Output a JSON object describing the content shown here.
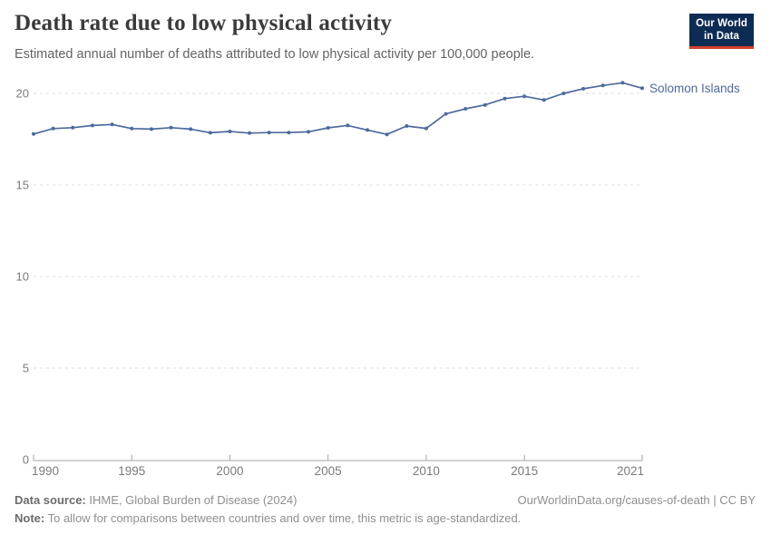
{
  "header": {
    "title": "Death rate due to low physical activity",
    "subtitle": "Estimated annual number of deaths attributed to low physical activity per 100,000 people.",
    "logo": {
      "line1": "Our World",
      "line2": "in Data"
    }
  },
  "chart_data": {
    "type": "line",
    "title": "Death rate due to low physical activity",
    "x": [
      1990,
      1991,
      1992,
      1993,
      1994,
      1995,
      1996,
      1997,
      1998,
      1999,
      2000,
      2001,
      2002,
      2003,
      2004,
      2005,
      2006,
      2007,
      2008,
      2009,
      2010,
      2011,
      2012,
      2013,
      2014,
      2015,
      2016,
      2017,
      2018,
      2019,
      2020,
      2021
    ],
    "series": [
      {
        "name": "Solomon Islands",
        "values": [
          17.78,
          18.08,
          18.13,
          18.25,
          18.3,
          18.08,
          18.05,
          18.13,
          18.05,
          17.85,
          17.92,
          17.83,
          17.86,
          17.86,
          17.9,
          18.12,
          18.25,
          18.0,
          17.76,
          18.22,
          18.09,
          18.88,
          19.16,
          19.37,
          19.72,
          19.84,
          19.64,
          20.0,
          20.25,
          20.43,
          20.58,
          20.28
        ]
      }
    ],
    "xlabel": "",
    "ylabel": "",
    "xlim": [
      1990,
      2021
    ],
    "ylim": [
      0,
      20
    ],
    "x_ticks": [
      1990,
      1995,
      2000,
      2005,
      2010,
      2015,
      2021
    ],
    "y_ticks": [
      0,
      5,
      10,
      15,
      20
    ],
    "grid": "dashed-horizontal",
    "legend_position": "line-end-label"
  },
  "footer": {
    "source_label": "Data source:",
    "source_text": " IHME, Global Burden of Disease (2024)",
    "link": "OurWorldinData.org/causes-of-death | CC BY",
    "note_label": "Note:",
    "note_text": " To allow for comparisons between countries and over time, this metric is age-standardized."
  },
  "colors": {
    "line": "#4C6A9C",
    "grid": "#dddddd",
    "axis": "#a5a5a5",
    "tick_text": "#7b7b7b",
    "logo_bg": "#0d2c54",
    "logo_red": "#d5402b"
  }
}
